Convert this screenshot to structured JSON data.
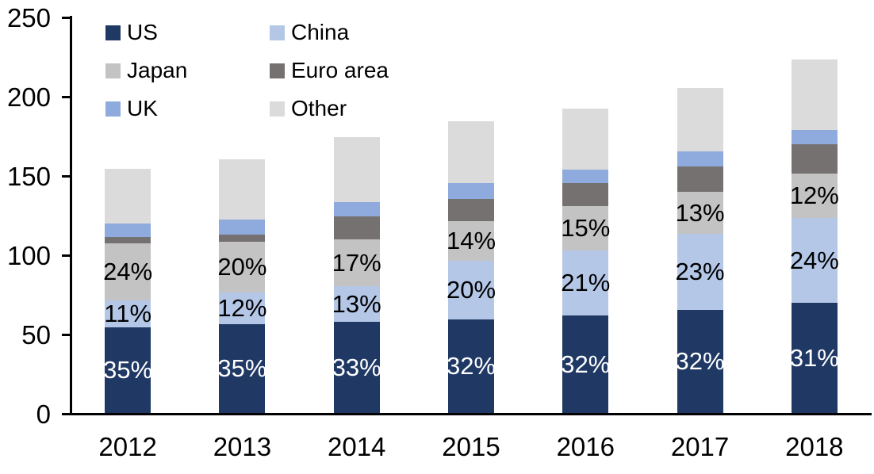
{
  "chart_data": {
    "type": "bar",
    "variant": "stacked-column",
    "title": "",
    "xlabel": "",
    "ylabel": "",
    "categories": [
      "2012",
      "2013",
      "2014",
      "2015",
      "2016",
      "2017",
      "2018"
    ],
    "ylim": [
      0,
      250
    ],
    "yticks": [
      0,
      50,
      100,
      150,
      200,
      250
    ],
    "ytick_labels": [
      "0",
      "50",
      "100",
      "150",
      "200",
      "250"
    ],
    "grid": "off",
    "legend_position": "top-left-inside-two-columns",
    "series": [
      {
        "name": "US",
        "color": "#1F3864",
        "values": [
          54,
          56,
          57.5,
          59,
          61.5,
          65,
          69.5
        ],
        "data_labels": [
          "35%",
          "35%",
          "33%",
          "32%",
          "32%",
          "32%",
          "31%"
        ],
        "label_color": "#FFFFFF"
      },
      {
        "name": "China",
        "color": "#B4C7E7",
        "values": [
          17,
          20,
          22.5,
          37,
          41,
          48,
          53.5
        ],
        "data_labels": [
          "11%",
          "12%",
          "13%",
          "20%",
          "21%",
          "23%",
          "24%"
        ],
        "label_color": "#000000"
      },
      {
        "name": "Japan",
        "color": "#C3C3C3",
        "values": [
          36,
          32,
          29.5,
          25,
          28,
          26.5,
          28
        ],
        "data_labels": [
          "24%",
          "20%",
          "17%",
          "14%",
          "15%",
          "13%",
          "12%"
        ],
        "label_color": "#000000"
      },
      {
        "name": "Euro area",
        "color": "#767171",
        "values": [
          4,
          4.5,
          14.5,
          14,
          14.5,
          16,
          18.5
        ],
        "data_labels": null,
        "label_color": "#000000"
      },
      {
        "name": "UK",
        "color": "#8FAADC",
        "values": [
          8.5,
          9.5,
          9,
          10,
          8.5,
          9.5,
          9
        ],
        "data_labels": null,
        "label_color": "#000000"
      },
      {
        "name": "Other",
        "color": "#DBDBDB",
        "values": [
          34.5,
          38,
          41,
          39,
          38.5,
          40,
          44.5
        ],
        "data_labels": null,
        "label_color": "#000000"
      }
    ],
    "stack_totals": [
      154,
      160,
      174,
      184,
      192,
      205,
      223
    ],
    "legend_rows": [
      [
        "US",
        "China"
      ],
      [
        "Japan",
        "Euro area"
      ],
      [
        "UK",
        "Other"
      ]
    ]
  },
  "layout_text": {
    "note": ""
  }
}
